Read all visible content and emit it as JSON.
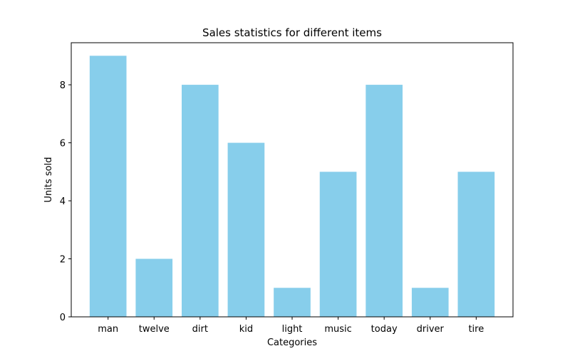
{
  "chart_data": {
    "type": "bar",
    "title": "Sales statistics for different items",
    "xlabel": "Categories",
    "ylabel": "Units sold",
    "categories": [
      "man",
      "twelve",
      "dirt",
      "kid",
      "light",
      "music",
      "today",
      "driver",
      "tire"
    ],
    "values": [
      9,
      2,
      8,
      6,
      1,
      5,
      8,
      1,
      5
    ],
    "yticks": [
      0,
      2,
      4,
      6,
      8
    ],
    "ylim": [
      0,
      9.45
    ],
    "grid": false,
    "bar_color": "#87CEEB"
  }
}
